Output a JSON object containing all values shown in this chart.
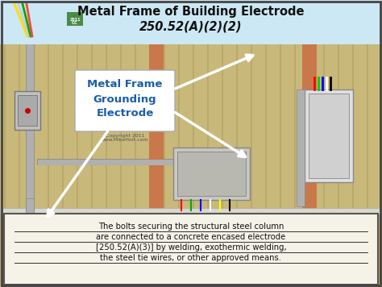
{
  "title_line1": "Metal Frame of Building Electrode",
  "title_line2": "250.52(A)(2)(2)",
  "label_main": "Metal Frame\nGrounding\nElectrode",
  "copyright": "Copyright 2011\nwww.MikeHolt.com",
  "bottom_text_line1": "The bolts securing the structural steel column",
  "bottom_text_line2": "are connected to a concrete encased electrode",
  "bottom_text_line3": "[250.52(A)(3)] by welding, exothermic welding,",
  "bottom_text_line4": "the steel tie wires, or other approved means.",
  "bg_top": "#cce8f4",
  "bg_wall": "#c8b87a",
  "bg_ground": "#c8a86e",
  "border_color": "#444444",
  "title_color": "#111111",
  "label_color": "#1a5fa8",
  "bottom_text_color": "#111111",
  "figsize": [
    4.74,
    3.56
  ],
  "dpi": 100
}
